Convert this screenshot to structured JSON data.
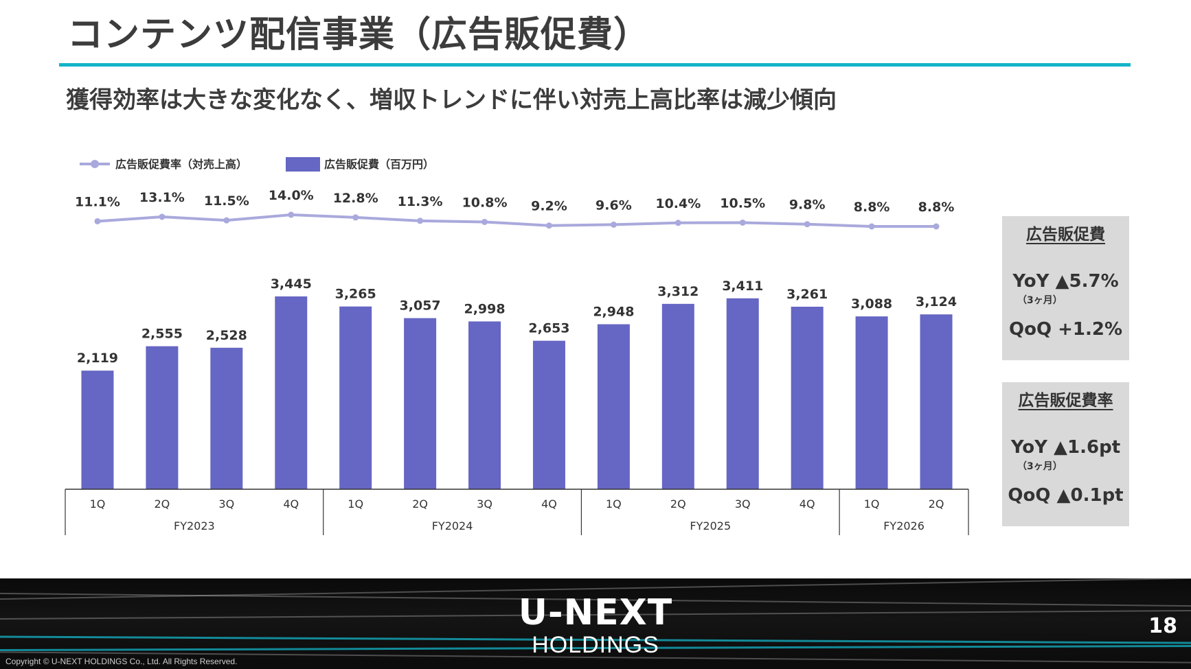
{
  "slide": {
    "title": "コンテンツ配信事業（広告販促費）",
    "subtitle": "獲得効率は大きな変化なく、増収トレンドに伴い対売上高比率は減少傾向",
    "page_number": "18",
    "copyright": "Copyright © U-NEXT HOLDINGS Co., Ltd. All Rights Reserved."
  },
  "logo": {
    "main": "U-NEXT",
    "sub": "HOLDINGS"
  },
  "colors": {
    "bar": "#6666c4",
    "line": "#a9a9dd",
    "accent": "#14b4c8",
    "box": "#d9d9d9"
  },
  "chart_data": {
    "type": "bar",
    "legend": {
      "position": "top-left",
      "line_label": "広告販促費率（対売上高）",
      "bar_label": "広告販促費（百万円）"
    },
    "categories": [
      "1Q",
      "2Q",
      "3Q",
      "4Q",
      "1Q",
      "2Q",
      "3Q",
      "4Q",
      "1Q",
      "2Q",
      "3Q",
      "4Q",
      "1Q",
      "2Q"
    ],
    "fiscal_years": [
      {
        "label": "FY2023",
        "count": 4
      },
      {
        "label": "FY2024",
        "count": 4
      },
      {
        "label": "FY2025",
        "count": 4
      },
      {
        "label": "FY2026",
        "count": 2
      }
    ],
    "series": [
      {
        "name": "広告販促費（百万円）",
        "type": "bar",
        "values": [
          2119,
          2555,
          2528,
          3445,
          3265,
          3057,
          2998,
          2653,
          2948,
          3312,
          3411,
          3261,
          3088,
          3124
        ],
        "labels": [
          "2,119",
          "2,555",
          "2,528",
          "3,445",
          "3,265",
          "3,057",
          "2,998",
          "2,653",
          "2,948",
          "3,312",
          "3,411",
          "3,261",
          "3,088",
          "3,124"
        ]
      },
      {
        "name": "広告販促費率（対売上高）",
        "type": "line",
        "values": [
          11.1,
          13.1,
          11.5,
          14.0,
          12.8,
          11.3,
          10.8,
          9.2,
          9.6,
          10.4,
          10.5,
          9.8,
          8.8,
          8.8
        ],
        "labels": [
          "11.1%",
          "13.1%",
          "11.5%",
          "14.0%",
          "12.8%",
          "11.3%",
          "10.8%",
          "9.2%",
          "9.6%",
          "10.4%",
          "10.5%",
          "9.8%",
          "8.8%",
          "8.8%"
        ]
      }
    ],
    "bar_ylim": [
      0,
      3445
    ],
    "line_ylim": [
      0,
      14.0
    ],
    "grid": false
  },
  "side_boxes": [
    {
      "title": "広告販促費",
      "yoy": "YoY ▲5.7%",
      "note": "（3ヶ月）",
      "qoq": "QoQ +1.2%"
    },
    {
      "title": "広告販促費率",
      "yoy": "YoY ▲1.6pt",
      "note": "（3ヶ月）",
      "qoq": "QoQ ▲0.1pt"
    }
  ]
}
